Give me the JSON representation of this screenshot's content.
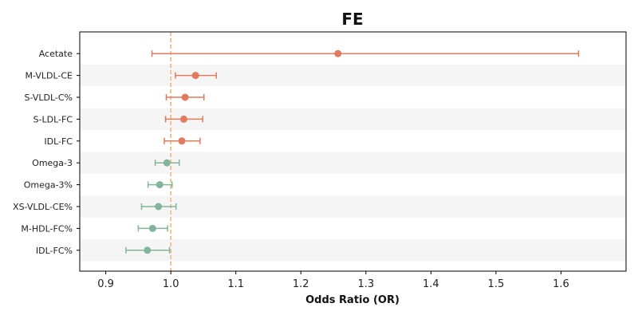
{
  "chart_data": {
    "type": "forest",
    "title": "FE",
    "xlabel": "Odds Ratio (OR)",
    "ylabel": "",
    "xlim": [
      0.86,
      1.7
    ],
    "x_ticks": [
      "0.9",
      "1.0",
      "1.1",
      "1.2",
      "1.3",
      "1.4",
      "1.5",
      "1.6"
    ],
    "reference_line": 1.0,
    "grid": false,
    "row_shading": "alternating",
    "colors": {
      "positive": "#e07b5f",
      "negative": "#84b49b",
      "reference_line": "#f2b36b",
      "band": "#f5f5f5"
    },
    "rows": [
      {
        "label": "Acetate",
        "or": 1.257,
        "lower": 0.971,
        "upper": 1.627,
        "group": "positive"
      },
      {
        "label": "M-VLDL-CE",
        "or": 1.038,
        "lower": 1.007,
        "upper": 1.07,
        "group": "positive"
      },
      {
        "label": "S-VLDL-C%",
        "or": 1.022,
        "lower": 0.993,
        "upper": 1.051,
        "group": "positive"
      },
      {
        "label": "S-LDL-FC",
        "or": 1.02,
        "lower": 0.992,
        "upper": 1.049,
        "group": "positive"
      },
      {
        "label": "IDL-FC",
        "or": 1.017,
        "lower": 0.99,
        "upper": 1.045,
        "group": "positive"
      },
      {
        "label": "Omega-3",
        "or": 0.994,
        "lower": 0.976,
        "upper": 1.013,
        "group": "negative"
      },
      {
        "label": "Omega-3%",
        "or": 0.983,
        "lower": 0.965,
        "upper": 1.002,
        "group": "negative"
      },
      {
        "label": "XS-VLDL-CE%",
        "or": 0.981,
        "lower": 0.955,
        "upper": 1.008,
        "group": "negative"
      },
      {
        "label": "M-HDL-FC%",
        "or": 0.972,
        "lower": 0.95,
        "upper": 0.995,
        "group": "negative"
      },
      {
        "label": "IDL-FC%",
        "or": 0.964,
        "lower": 0.931,
        "upper": 0.998,
        "group": "negative"
      }
    ]
  }
}
